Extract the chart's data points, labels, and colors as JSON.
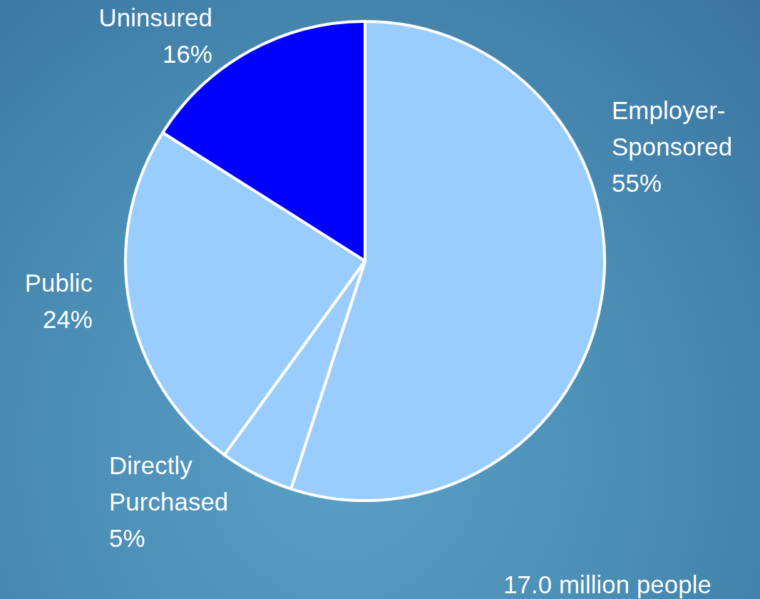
{
  "chart_data": {
    "type": "pie",
    "categories": [
      "Employer-Sponsored",
      "Directly Purchased",
      "Public",
      "Uninsured"
    ],
    "values": [
      55,
      5,
      24,
      16
    ],
    "colors": [
      "#99ccff",
      "#99ccff",
      "#99ccff",
      "#0000ff"
    ],
    "value_labels": [
      "55%",
      "5%",
      "24%",
      "16%"
    ],
    "annotations": [
      "17.0 million people"
    ],
    "legend": false
  }
}
